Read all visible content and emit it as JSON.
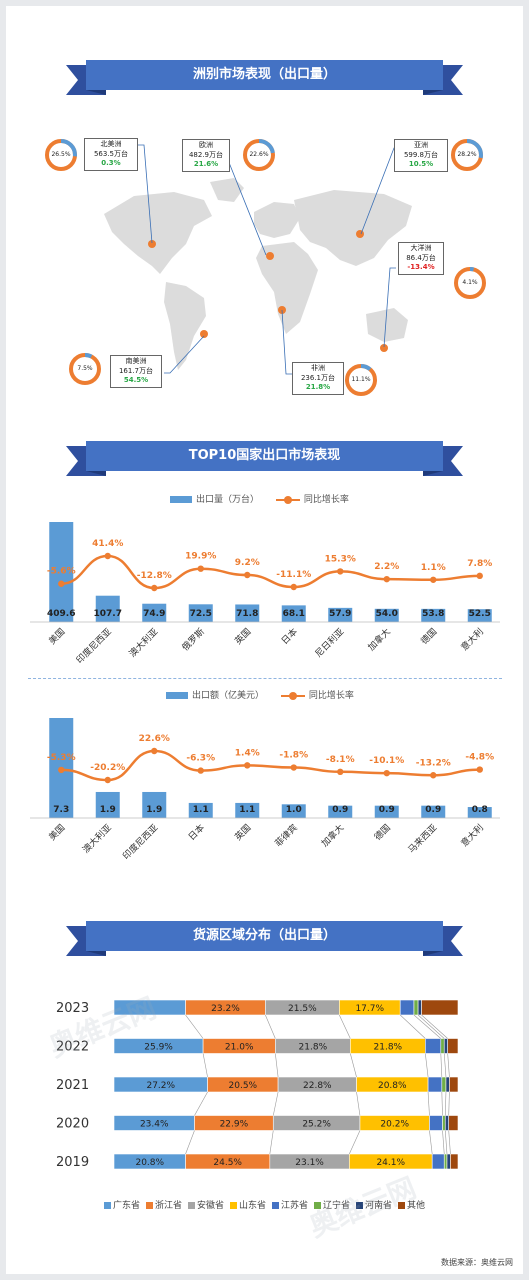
{
  "sections": {
    "continent_title": "洲别市场表现（出口量）",
    "top10_title": "TOP10国家出口市场表现",
    "source_title": "货源区域分布（出口量）"
  },
  "continents": [
    {
      "name": "北美洲",
      "value": "563.5万台",
      "growth": "0.3%",
      "share": "26.5%",
      "share_value": 26.5,
      "trend": "up"
    },
    {
      "name": "欧洲",
      "value": "482.9万台",
      "growth": "21.6%",
      "share": "22.6%",
      "share_value": 22.6,
      "trend": "up"
    },
    {
      "name": "亚洲",
      "value": "599.8万台",
      "growth": "10.5%",
      "share": "28.2%",
      "share_value": 28.2,
      "trend": "up"
    },
    {
      "name": "大洋洲",
      "value": "86.4万台",
      "growth": "-13.4%",
      "share": "4.1%",
      "share_value": 4.1,
      "trend": "down"
    },
    {
      "name": "南美洲",
      "value": "161.7万台",
      "growth": "54.5%",
      "share": "7.5%",
      "share_value": 7.5,
      "trend": "up"
    },
    {
      "name": "非洲",
      "value": "236.1万台",
      "growth": "21.8%",
      "share": "11.1%",
      "share_value": 11.1,
      "trend": "up"
    }
  ],
  "colors": {
    "bar": "#5b9bd5",
    "line": "#ed7d31",
    "banner": "#4472c4",
    "banner_dark": "#2f4f9e",
    "map": "#dcdcdc",
    "up": "#28a745",
    "down": "#e02020"
  },
  "source_note": "数据来源：奥维云网",
  "watermark": "奥维云网",
  "chart_data": [
    {
      "type": "bar",
      "title": "",
      "legend": [
        "出口量（万台）",
        "同比增长率"
      ],
      "categories": [
        "美国",
        "印度尼西亚",
        "澳大利亚",
        "俄罗斯",
        "英国",
        "日本",
        "尼日利亚",
        "加拿大",
        "德国",
        "意大利"
      ],
      "series": [
        {
          "name": "出口量（万台）",
          "values": [
            409.6,
            107.7,
            74.9,
            72.5,
            71.8,
            68.1,
            57.9,
            54.0,
            53.8,
            52.5
          ],
          "labels": [
            "409.6",
            "107.7",
            "74.9",
            "72.5",
            "71.8",
            "68.1",
            "57.9",
            "54.0",
            "53.8",
            "52.5"
          ]
        },
        {
          "name": "同比增长率",
          "values": [
            -5.6,
            41.4,
            -12.8,
            19.9,
            9.2,
            -11.1,
            15.3,
            2.2,
            1.1,
            7.8
          ],
          "labels": [
            "-5.6%",
            "41.4%",
            "-12.8%",
            "19.9%",
            "9.2%",
            "-11.1%",
            "15.3%",
            "2.2%",
            "1.1%",
            "7.8%"
          ]
        }
      ]
    },
    {
      "type": "bar",
      "title": "",
      "legend": [
        "出口额（亿美元）",
        "同比增长率"
      ],
      "categories": [
        "美国",
        "澳大利亚",
        "印度尼西亚",
        "日本",
        "英国",
        "菲律宾",
        "加拿大",
        "德国",
        "马来西亚",
        "意大利"
      ],
      "series": [
        {
          "name": "出口额（亿美元）",
          "values": [
            7.3,
            1.9,
            1.9,
            1.1,
            1.1,
            1.0,
            0.9,
            0.9,
            0.9,
            0.8
          ],
          "labels": [
            "7.3",
            "1.9",
            "1.9",
            "1.1",
            "1.1",
            "1.0",
            "0.9",
            "0.9",
            "0.9",
            "0.8"
          ]
        },
        {
          "name": "同比增长率",
          "values": [
            -5.3,
            -20.2,
            22.6,
            -6.3,
            1.4,
            -1.8,
            -8.1,
            -10.1,
            -13.2,
            -4.8
          ],
          "labels": [
            "-5.3%",
            "-20.2%",
            "22.6%",
            "-6.3%",
            "1.4%",
            "-1.8%",
            "-8.1%",
            "-10.1%",
            "-13.2%",
            "-4.8%"
          ]
        }
      ]
    },
    {
      "type": "bar",
      "stacked": "percent",
      "orientation": "horizontal",
      "title": "",
      "categories": [
        "2023",
        "2022",
        "2021",
        "2020",
        "2019"
      ],
      "series": [
        {
          "name": "广东省",
          "color": "#5b9bd5",
          "values": [
            20.8,
            25.9,
            27.2,
            23.4,
            20.8
          ],
          "labels": [
            "",
            "25.9%",
            "27.2%",
            "23.4%",
            "20.8%"
          ]
        },
        {
          "name": "浙江省",
          "color": "#ed7d31",
          "values": [
            23.2,
            21.0,
            20.5,
            22.9,
            24.5
          ],
          "labels": [
            "23.2%",
            "21.0%",
            "20.5%",
            "22.9%",
            "24.5%"
          ]
        },
        {
          "name": "安徽省",
          "color": "#a5a5a5",
          "values": [
            21.5,
            21.8,
            22.8,
            25.2,
            23.1
          ],
          "labels": [
            "21.5%",
            "21.8%",
            "22.8%",
            "25.2%",
            "23.1%"
          ]
        },
        {
          "name": "山东省",
          "color": "#ffc000",
          "values": [
            17.7,
            21.8,
            20.8,
            20.2,
            24.1
          ],
          "labels": [
            "17.7%",
            "21.8%",
            "20.8%",
            "20.2%",
            "24.1%"
          ]
        },
        {
          "name": "江苏省",
          "color": "#4472c4",
          "values": [
            4.0,
            4.5,
            4.0,
            3.8,
            3.5
          ],
          "labels": [
            "",
            "",
            "",
            "",
            ""
          ]
        },
        {
          "name": "辽宁省",
          "color": "#70ad47",
          "values": [
            1.2,
            1.0,
            1.2,
            0.8,
            0.8
          ],
          "labels": [
            "",
            "",
            "",
            "",
            ""
          ]
        },
        {
          "name": "河南省",
          "color": "#264478",
          "values": [
            1.0,
            1.0,
            1.0,
            1.0,
            1.0
          ],
          "labels": [
            "",
            "",
            "",
            "",
            ""
          ]
        },
        {
          "name": "其他",
          "color": "#9e480e",
          "values": [
            10.6,
            3.0,
            2.5,
            2.7,
            2.2
          ],
          "labels": [
            "",
            "",
            "",
            "",
            ""
          ]
        }
      ]
    }
  ]
}
